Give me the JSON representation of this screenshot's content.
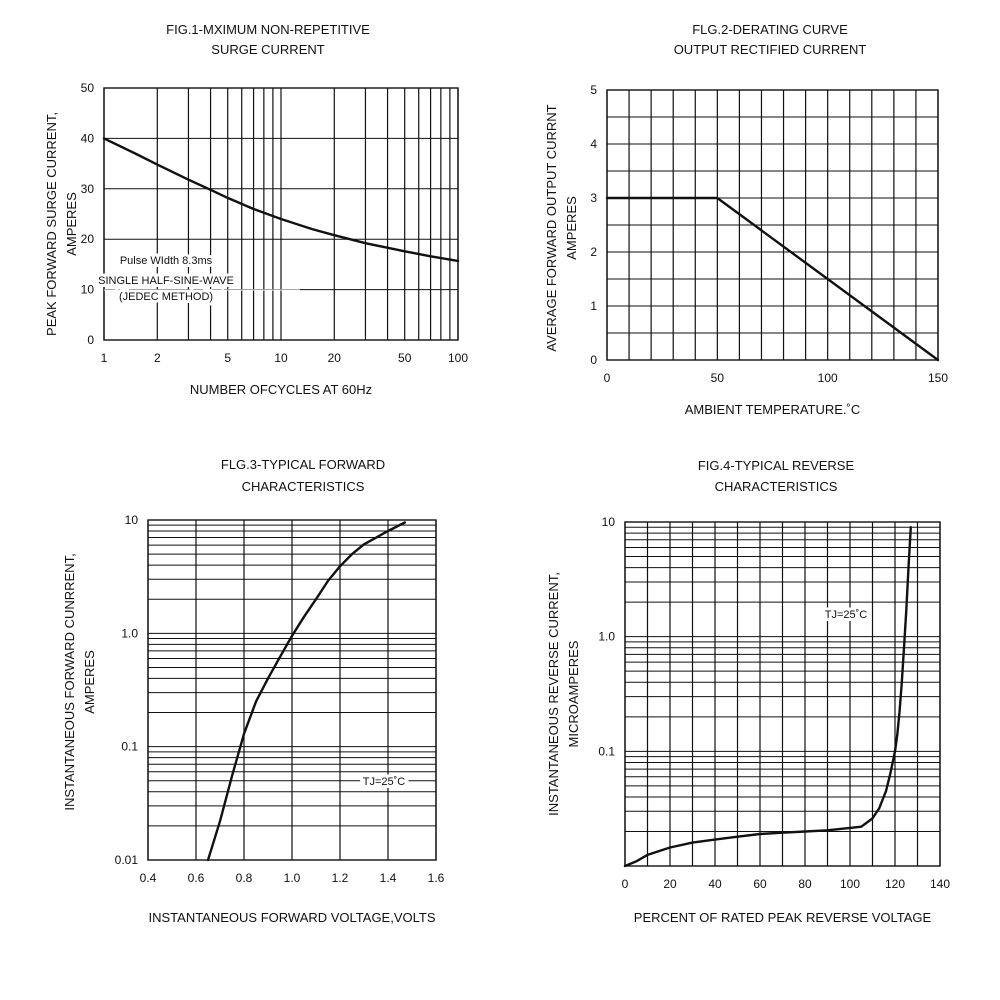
{
  "chart_data": [
    {
      "type": "line",
      "title": [
        "FIG.1-MXIMUM NON-REPETITIVE",
        "SURGE CURRENT"
      ],
      "xlabel": "NUMBER OFCYCLES AT 60Hz",
      "ylabel": [
        "PEAK FORWARD SURGE CURRENT,",
        "AMPERES"
      ],
      "x_scale": "log",
      "xlim": [
        1,
        100
      ],
      "ylim": [
        0,
        50
      ],
      "x_ticks": [
        1,
        2,
        5,
        10,
        20,
        50,
        100
      ],
      "x_tick_labels": [
        "1",
        "2",
        "5",
        "10",
        "20",
        "50",
        "100"
      ],
      "y_ticks": [
        0,
        10,
        20,
        30,
        40,
        50
      ],
      "y_tick_labels": [
        "0",
        "10",
        "20",
        "30",
        "40",
        "50"
      ],
      "grid": true,
      "annotation": [
        "Pulse WIdth 8.3ms",
        "SINGLE HALF-SINE-WAVE",
        "(JEDEC METHOD)"
      ],
      "series": [
        {
          "x": [
            1,
            1.5,
            2,
            3,
            4,
            5,
            7,
            10,
            15,
            20,
            30,
            50,
            70,
            100
          ],
          "y": [
            40,
            37,
            34.8,
            31.8,
            29.8,
            28.2,
            26,
            24,
            22,
            20.8,
            19.2,
            17.6,
            16.6,
            15.7
          ]
        }
      ]
    },
    {
      "type": "line",
      "title": [
        "FLG.2-DERATING CURVE",
        "OUTPUT RECTIFIED CURRENT"
      ],
      "xlabel": "AMBIENT TEMPERATURE.˚C",
      "ylabel": [
        "AVERAGE  FORWARD OUTPUT CURRNT",
        "AMPERES"
      ],
      "x_scale": "linear",
      "xlim": [
        0,
        150
      ],
      "ylim": [
        0,
        5
      ],
      "x_ticks": [
        0,
        50,
        100,
        150
      ],
      "x_tick_labels": [
        "0",
        "50",
        "100",
        "150"
      ],
      "y_ticks": [
        0,
        1,
        2,
        3,
        4,
        5
      ],
      "y_tick_labels": [
        "0",
        "1",
        "2",
        "3",
        "4",
        "5"
      ],
      "grid": true,
      "series": [
        {
          "x": [
            0,
            50,
            150
          ],
          "y": [
            3,
            3,
            0
          ]
        }
      ]
    },
    {
      "type": "line",
      "title": [
        "FLG.3-TYPICAL FORWARD",
        "CHARACTERISTICS"
      ],
      "xlabel": "INSTANTANEOUS FORWARD VOLTAGE,VOLTS",
      "ylabel": [
        "INSTANTANEOUS FORWARD CUNRRENT,",
        "AMPERES"
      ],
      "x_scale": "linear",
      "y_scale": "log",
      "xlim": [
        0.4,
        1.6
      ],
      "ylim": [
        0.01,
        10
      ],
      "x_ticks": [
        0.4,
        0.6,
        0.8,
        1.0,
        1.2,
        1.4,
        1.6
      ],
      "x_tick_labels": [
        "0.4",
        "0.6",
        "0.8",
        "1.0",
        "1.2",
        "1.4",
        "1.6"
      ],
      "y_ticks": [
        0.01,
        0.1,
        1.0,
        10
      ],
      "y_tick_labels": [
        "0.01",
        "0.1",
        "1.0",
        "10"
      ],
      "grid": true,
      "annotation": [
        "TJ=25˚C"
      ],
      "series": [
        {
          "x": [
            0.65,
            0.7,
            0.75,
            0.8,
            0.85,
            0.9,
            0.95,
            1.0,
            1.05,
            1.1,
            1.15,
            1.2,
            1.25,
            1.3,
            1.4,
            1.47
          ],
          "y": [
            0.01,
            0.022,
            0.055,
            0.13,
            0.25,
            0.4,
            0.62,
            0.95,
            1.4,
            2.0,
            2.9,
            3.9,
            5.0,
            6.1,
            8.0,
            9.5
          ]
        }
      ]
    },
    {
      "type": "line",
      "title": [
        "FIG.4-TYPICAL REVERSE",
        "CHARACTERISTICS"
      ],
      "xlabel": "PERCENT OF RATED PEAK REVERSE VOLTAGE",
      "ylabel": [
        "INSTANTANEOUS REVERSE CURRENT,",
        "MICROAMPERES"
      ],
      "x_scale": "linear",
      "y_scale": "log",
      "xlim": [
        0,
        140
      ],
      "ylim": [
        0.01,
        10
      ],
      "x_ticks": [
        0,
        20,
        40,
        60,
        80,
        100,
        120,
        140
      ],
      "x_tick_labels": [
        "0",
        "20",
        "40",
        "60",
        "80",
        "100",
        "120",
        "140"
      ],
      "y_ticks": [
        0.1,
        1.0,
        10
      ],
      "y_tick_labels": [
        "0.1",
        "1.0",
        "10"
      ],
      "grid": true,
      "annotation": [
        "TJ=25˚C"
      ],
      "series": [
        {
          "x": [
            0,
            5,
            10,
            20,
            30,
            40,
            50,
            60,
            70,
            80,
            90,
            100,
            105,
            110,
            113,
            116,
            118,
            120,
            121,
            122,
            123,
            124,
            125,
            126,
            127
          ],
          "y": [
            0.01,
            0.011,
            0.0125,
            0.0145,
            0.016,
            0.017,
            0.018,
            0.019,
            0.0195,
            0.02,
            0.0205,
            0.0215,
            0.022,
            0.026,
            0.032,
            0.045,
            0.065,
            0.1,
            0.14,
            0.22,
            0.4,
            0.8,
            1.7,
            4,
            9
          ]
        }
      ]
    }
  ]
}
